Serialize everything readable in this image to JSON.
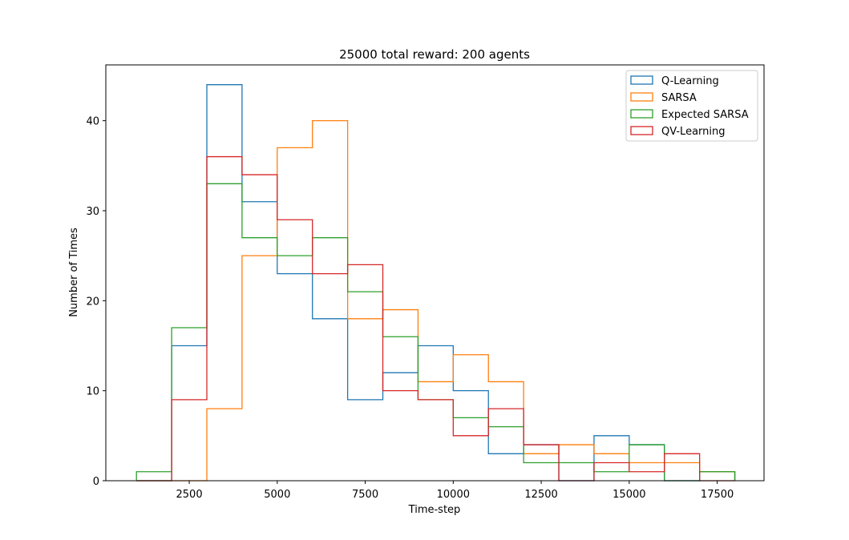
{
  "chart_data": {
    "type": "histogram-step",
    "title": "25000 total reward: 200 agents",
    "xlabel": "Time-step",
    "ylabel": "Number of Times",
    "xlim": [
      130,
      18830
    ],
    "ylim": [
      0,
      46.2
    ],
    "xticks": [
      2500,
      5000,
      7500,
      10000,
      12500,
      15000,
      17500
    ],
    "yticks": [
      0,
      10,
      20,
      30,
      40
    ],
    "bin_edges": [
      1000,
      2000,
      3000,
      4000,
      5000,
      6000,
      7000,
      8000,
      9000,
      10000,
      11000,
      12000,
      13000,
      14000,
      15000,
      16000,
      17000,
      18000
    ],
    "legend_position": "upper right",
    "series": [
      {
        "name": "Q-Learning",
        "color": "#1f77b4",
        "counts": [
          0,
          15,
          44,
          31,
          23,
          18,
          9,
          12,
          15,
          10,
          3,
          4,
          0,
          5,
          4,
          0,
          1
        ]
      },
      {
        "name": "SARSA",
        "color": "#ff7f0e",
        "counts": [
          0,
          0,
          8,
          25,
          37,
          40,
          18,
          19,
          11,
          14,
          11,
          3,
          4,
          3,
          2,
          2,
          1
        ]
      },
      {
        "name": "Expected SARSA",
        "color": "#2ca02c",
        "counts": [
          1,
          17,
          33,
          27,
          25,
          27,
          21,
          16,
          9,
          7,
          6,
          2,
          2,
          1,
          4,
          0,
          1
        ]
      },
      {
        "name": "QV-Learning",
        "color": "#d62728",
        "counts": [
          0,
          9,
          36,
          34,
          29,
          23,
          24,
          10,
          9,
          5,
          8,
          4,
          0,
          2,
          1,
          3,
          0
        ]
      }
    ]
  }
}
